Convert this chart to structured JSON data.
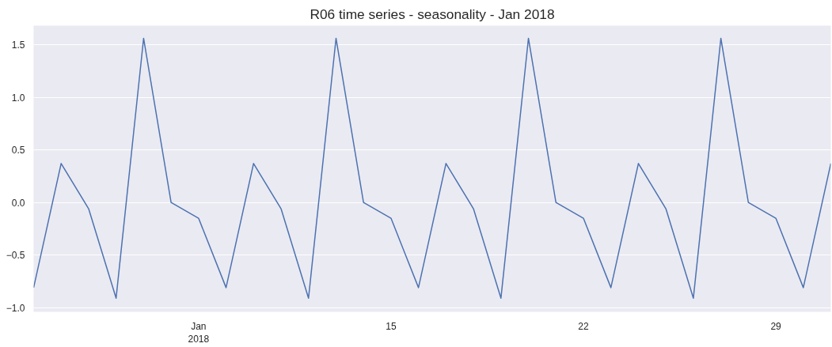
{
  "chart_data": {
    "type": "line",
    "title": "R06 time series - seasonality - Jan 2018",
    "x": [
      "2018-01-02",
      "2018-01-03",
      "2018-01-04",
      "2018-01-05",
      "2018-01-06",
      "2018-01-07",
      "2018-01-08",
      "2018-01-09",
      "2018-01-10",
      "2018-01-11",
      "2018-01-12",
      "2018-01-13",
      "2018-01-14",
      "2018-01-15",
      "2018-01-16",
      "2018-01-17",
      "2018-01-18",
      "2018-01-19",
      "2018-01-20",
      "2018-01-21",
      "2018-01-22",
      "2018-01-23",
      "2018-01-24",
      "2018-01-25",
      "2018-01-26",
      "2018-01-27",
      "2018-01-28",
      "2018-01-29",
      "2018-01-30",
      "2018-01-31"
    ],
    "series": [
      {
        "color": "#4c72b0",
        "values": [
          -0.81,
          0.37,
          -0.06,
          -0.91,
          1.56,
          0.0,
          -0.15,
          -0.81,
          0.37,
          -0.06,
          -0.91,
          1.56,
          0.0,
          -0.15,
          -0.81,
          0.37,
          -0.06,
          -0.91,
          1.56,
          0.0,
          -0.15,
          -0.81,
          0.37,
          -0.06,
          -0.91,
          1.56,
          0.0,
          -0.15,
          -0.81,
          0.37
        ]
      }
    ],
    "xlim": [
      "2018-01-02",
      "2018-01-31"
    ],
    "xticks": [
      {
        "value": "2018-01-08",
        "label": "Jan\n2018"
      },
      {
        "value": "2018-01-15",
        "label": "15"
      },
      {
        "value": "2018-01-22",
        "label": "22"
      },
      {
        "value": "2018-01-29",
        "label": "29"
      }
    ],
    "ylim": [
      -1.04,
      1.68
    ],
    "yticks": [
      {
        "value": -1.0,
        "label": "−1.0"
      },
      {
        "value": -0.5,
        "label": "−0.5"
      },
      {
        "value": 0.0,
        "label": "0.0"
      },
      {
        "value": 0.5,
        "label": "0.5"
      },
      {
        "value": 1.0,
        "label": "1.0"
      },
      {
        "value": 1.5,
        "label": "1.5"
      }
    ],
    "grid": "y",
    "marker": "none",
    "line_style": "solid"
  }
}
